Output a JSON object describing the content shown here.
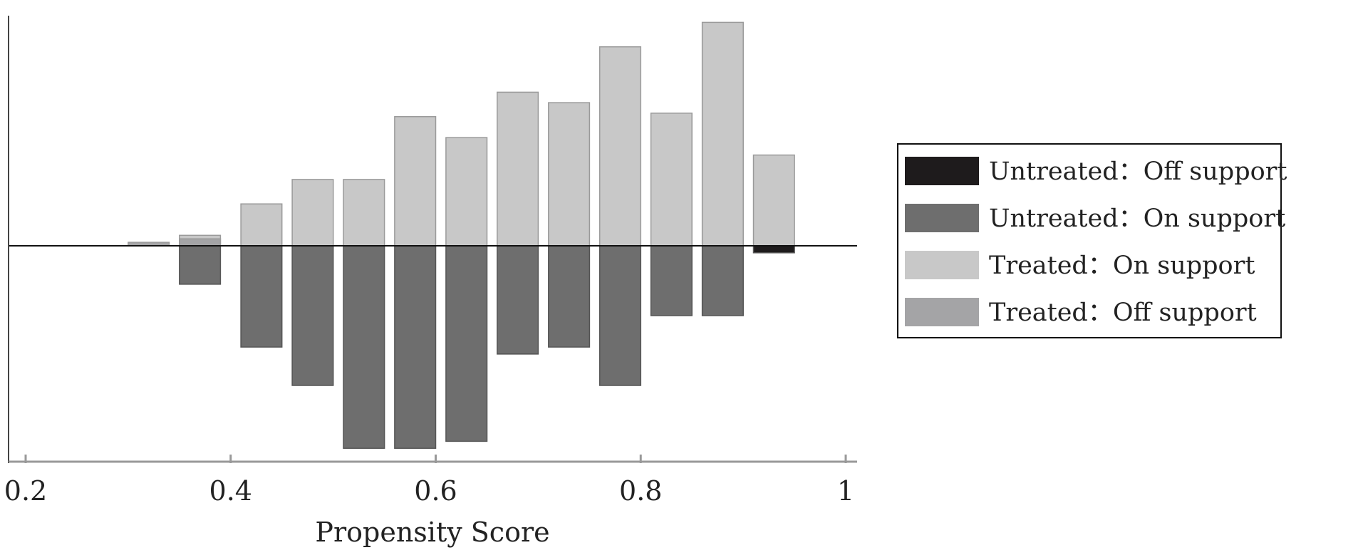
{
  "chart_data": {
    "type": "bar",
    "xlabel": "Propensity Score",
    "ylabel": "",
    "xlim": [
      0.2,
      1.0
    ],
    "x_ticks": [
      {
        "value": 0.2,
        "label": "0.2"
      },
      {
        "value": 0.4,
        "label": "0.4"
      },
      {
        "value": 0.6,
        "label": "0.6"
      },
      {
        "value": 0.8,
        "label": "0.8"
      },
      {
        "value": 1.0,
        "label": "1"
      }
    ],
    "bin_width": 0.04,
    "grid": false,
    "legend_position": "right",
    "series": [
      {
        "name": "Untreated: Off support",
        "label": "Untreated：Off support",
        "direction": "below",
        "color": "#1e1b1c",
        "points": [
          {
            "x": 0.93,
            "y": 1
          }
        ]
      },
      {
        "name": "Untreated: On support",
        "label": "Untreated：On support",
        "direction": "below",
        "color": "#6e6e6e",
        "points": [
          {
            "x": 0.37,
            "y": 5.5
          },
          {
            "x": 0.43,
            "y": 14.5
          },
          {
            "x": 0.48,
            "y": 20
          },
          {
            "x": 0.53,
            "y": 29
          },
          {
            "x": 0.58,
            "y": 29
          },
          {
            "x": 0.63,
            "y": 28
          },
          {
            "x": 0.68,
            "y": 15.5
          },
          {
            "x": 0.73,
            "y": 14.5
          },
          {
            "x": 0.78,
            "y": 20
          },
          {
            "x": 0.83,
            "y": 10
          },
          {
            "x": 0.88,
            "y": 10
          }
        ]
      },
      {
        "name": "Treated: On support",
        "label": "Treated：On support",
        "direction": "above",
        "color": "#c8c8c8",
        "points": [
          {
            "x": 0.37,
            "y": 1.5
          },
          {
            "x": 0.43,
            "y": 6
          },
          {
            "x": 0.48,
            "y": 9.5
          },
          {
            "x": 0.53,
            "y": 9.5
          },
          {
            "x": 0.58,
            "y": 18.5
          },
          {
            "x": 0.63,
            "y": 15.5
          },
          {
            "x": 0.68,
            "y": 22
          },
          {
            "x": 0.73,
            "y": 20.5
          },
          {
            "x": 0.78,
            "y": 28.5
          },
          {
            "x": 0.83,
            "y": 19
          },
          {
            "x": 0.88,
            "y": 32
          },
          {
            "x": 0.93,
            "y": 13
          }
        ]
      },
      {
        "name": "Treated: Off support",
        "label": "Treated：Off support",
        "direction": "above",
        "color": "#a4a4a6",
        "points": [
          {
            "x": 0.32,
            "y": 0.5
          },
          {
            "x": 0.37,
            "y": 1
          }
        ]
      }
    ]
  }
}
